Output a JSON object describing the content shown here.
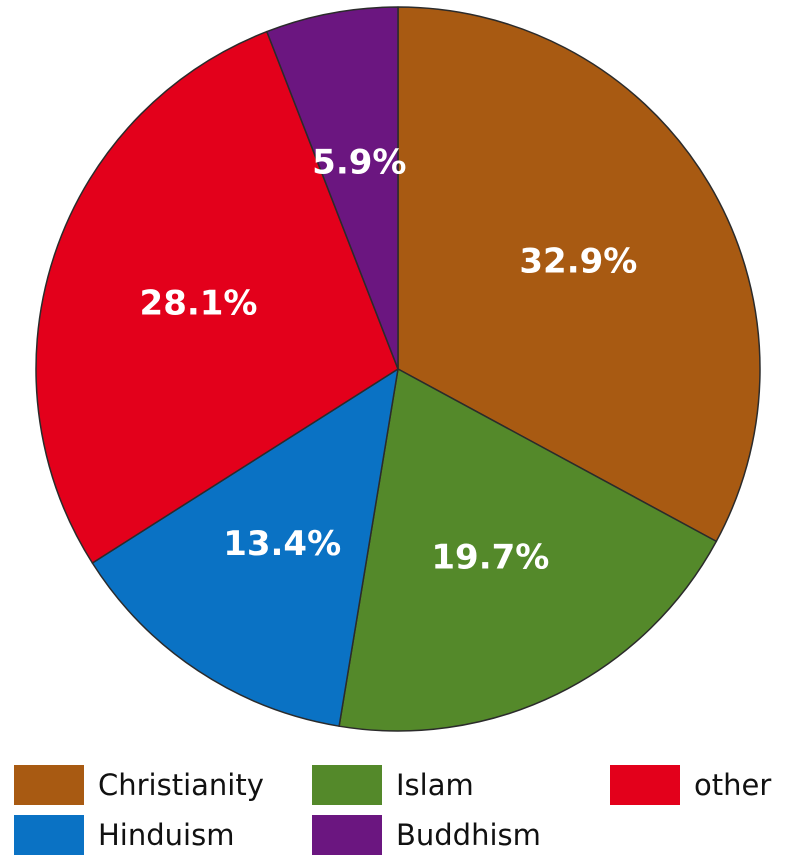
{
  "chart_data": {
    "type": "pie",
    "title": "",
    "slices": [
      {
        "name": "Christianity",
        "value": 32.9,
        "label": "32.9%",
        "color": "#a85a12"
      },
      {
        "name": "Islam",
        "value": 19.7,
        "label": "19.7%",
        "color": "#54892a"
      },
      {
        "name": "Hinduism",
        "value": 13.4,
        "label": "13.4%",
        "color": "#0a72c4"
      },
      {
        "name": "other",
        "value": 28.1,
        "label": "28.1%",
        "color": "#e3001b"
      },
      {
        "name": "Buddhism",
        "value": 5.9,
        "label": "5.9%",
        "color": "#6b1680"
      }
    ],
    "start_angle_deg": 0,
    "direction": "clockwise",
    "legend_position": "bottom"
  },
  "legend": {
    "christianity": {
      "label": "Christianity",
      "color": "#a85a12"
    },
    "islam": {
      "label": "Islam",
      "color": "#54892a"
    },
    "other": {
      "label": "other",
      "color": "#e3001b"
    },
    "hinduism": {
      "label": "Hinduism",
      "color": "#0a72c4"
    },
    "buddhism": {
      "label": "Buddhism",
      "color": "#6b1680"
    }
  }
}
